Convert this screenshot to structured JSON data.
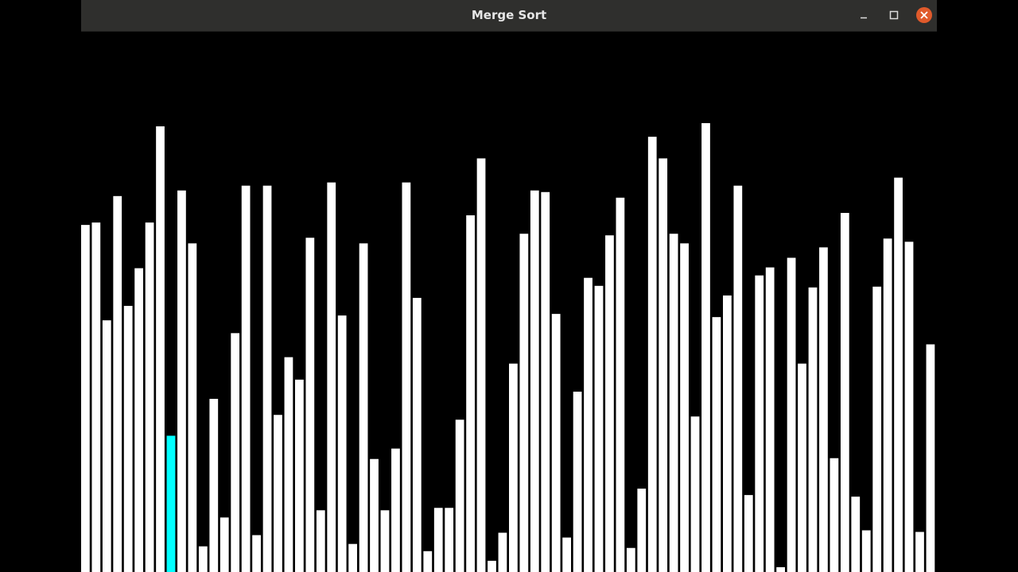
{
  "window": {
    "title": "Merge Sort",
    "controls": {
      "minimize_icon": "minimize-icon",
      "maximize_icon": "maximize-icon",
      "close_icon": "close-icon",
      "close_color": "#e05a2b"
    }
  },
  "chart_data": {
    "type": "bar",
    "bar_color": "#ffffff",
    "highlight_color": "#00ffff",
    "highlight_index": 8,
    "ylim": [
      0,
      560
    ],
    "values": [
      433,
      436,
      314,
      469,
      332,
      379,
      436,
      556,
      170,
      476,
      410,
      32,
      216,
      68,
      298,
      482,
      46,
      482,
      196,
      268,
      240,
      417,
      77,
      486,
      320,
      35,
      410,
      141,
      77,
      154,
      486,
      342,
      26,
      80,
      80,
      190,
      445,
      516,
      14,
      49,
      260,
      422,
      476,
      474,
      322,
      43,
      225,
      367,
      357,
      420,
      467,
      30,
      104,
      543,
      516,
      422,
      410,
      194,
      561,
      318,
      345,
      482,
      96,
      370,
      380,
      6,
      392,
      260,
      355,
      405,
      142,
      448,
      94,
      52,
      356,
      416,
      492,
      412,
      50,
      284
    ]
  }
}
